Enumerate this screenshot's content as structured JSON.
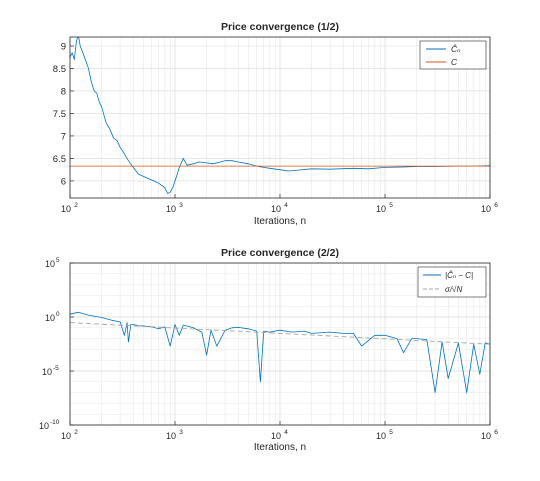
{
  "chart_data": [
    {
      "type": "line",
      "title": "Price convergence (1/2)",
      "xlabel": "Iterations, n",
      "ylabel": "",
      "xscale": "log",
      "yscale": "linear",
      "xlim": [
        100,
        1000000
      ],
      "ylim": [
        5.62,
        9.2
      ],
      "xticks": [
        100,
        1000,
        10000,
        100000,
        1000000
      ],
      "xtick_exponents": [
        "2",
        "3",
        "4",
        "5",
        "6"
      ],
      "yticks": [
        6,
        6.5,
        7,
        7.5,
        8,
        8.5,
        9
      ],
      "ytick_labels": [
        "6",
        "6.5",
        "7",
        "7.5",
        "8",
        "8.5",
        "9"
      ],
      "grid": true,
      "legend_position": "top-right",
      "series": [
        {
          "name": "Ĉₙ",
          "color": "#0072bd",
          "x": [
            100,
            105,
            110,
            115,
            120,
            125,
            130,
            140,
            150,
            160,
            170,
            180,
            190,
            200,
            220,
            240,
            260,
            280,
            300,
            330,
            360,
            400,
            450,
            500,
            560,
            630,
            700,
            800,
            850,
            900,
            950,
            1000,
            1050,
            1100,
            1200,
            1300,
            1500,
            1700,
            2000,
            2300,
            2700,
            3000,
            3500,
            4000,
            5000,
            6000,
            7000,
            8000,
            10000,
            12000,
            15000,
            20000,
            30000,
            50000,
            70000,
            100000,
            150000,
            200000,
            300000,
            500000,
            700000,
            1000000
          ],
          "y": [
            8.75,
            8.85,
            8.7,
            9.1,
            9.25,
            9.0,
            8.9,
            8.7,
            8.5,
            8.2,
            8.0,
            7.95,
            7.75,
            7.65,
            7.3,
            7.15,
            6.95,
            6.9,
            6.75,
            6.6,
            6.45,
            6.3,
            6.15,
            6.1,
            6.05,
            6.0,
            5.95,
            5.85,
            5.72,
            5.75,
            5.85,
            6.0,
            6.15,
            6.3,
            6.5,
            6.35,
            6.38,
            6.42,
            6.4,
            6.38,
            6.42,
            6.45,
            6.45,
            6.42,
            6.38,
            6.33,
            6.3,
            6.28,
            6.25,
            6.22,
            6.24,
            6.27,
            6.26,
            6.28,
            6.27,
            6.3,
            6.31,
            6.32,
            6.32,
            6.33,
            6.33,
            6.34
          ]
        },
        {
          "name": "C",
          "color": "#d95319",
          "x": [
            100,
            1000000
          ],
          "y": [
            6.33,
            6.33
          ]
        }
      ]
    },
    {
      "type": "line",
      "title": "Price convergence (2/2)",
      "xlabel": "Iterations, n",
      "ylabel": "",
      "xscale": "log",
      "yscale": "log",
      "xlim": [
        100,
        1000000
      ],
      "ylim": [
        1e-10,
        100000
      ],
      "xticks": [
        100,
        1000,
        10000,
        100000,
        1000000
      ],
      "xtick_exponents": [
        "2",
        "3",
        "4",
        "5",
        "6"
      ],
      "yticks": [
        1e-10,
        1e-05,
        1,
        100000
      ],
      "ytick_exponents": [
        "-10",
        "-5",
        "0",
        "5"
      ],
      "grid": true,
      "legend_position": "top-right",
      "series": [
        {
          "name": "|Ĉₙ − C|",
          "color": "#0072bd",
          "x": [
            100,
            120,
            150,
            200,
            250,
            300,
            330,
            350,
            360,
            380,
            400,
            450,
            500,
            600,
            700,
            800,
            900,
            1000,
            1100,
            1200,
            1500,
            1800,
            2000,
            2200,
            2500,
            3000,
            3500,
            4000,
            5000,
            6000,
            6500,
            7000,
            8000,
            10000,
            13000,
            17000,
            20000,
            30000,
            40000,
            50000,
            60000,
            80000,
            100000,
            130000,
            150000,
            180000,
            200000,
            250000,
            300000,
            350000,
            400000,
            500000,
            600000,
            700000,
            800000,
            900000,
            1000000
          ],
          "y": [
            1.8,
            2.7,
            1.5,
            0.9,
            0.5,
            0.35,
            0.02,
            0.3,
            0.005,
            0.2,
            0.2,
            0.15,
            0.15,
            0.12,
            0.08,
            0.12,
            0.002,
            0.2,
            0.02,
            0.18,
            0.1,
            0.04,
            0.0003,
            0.06,
            0.002,
            0.06,
            0.1,
            0.11,
            0.08,
            0.05,
            1e-06,
            0.05,
            0.04,
            0.06,
            0.04,
            0.05,
            0.03,
            0.04,
            0.03,
            0.03,
            0.002,
            0.02,
            0.02,
            0.01,
            0.0005,
            0.01,
            0.01,
            0.008,
            1e-07,
            0.005,
            2e-06,
            0.004,
            1e-07,
            0.003,
            5e-06,
            0.004,
            0.003
          ]
        },
        {
          "name": "σ/√N",
          "color": "#a6a6a6",
          "dashed": true,
          "x": [
            100,
            1000000
          ],
          "y": [
            0.3,
            0.003
          ]
        }
      ]
    }
  ]
}
